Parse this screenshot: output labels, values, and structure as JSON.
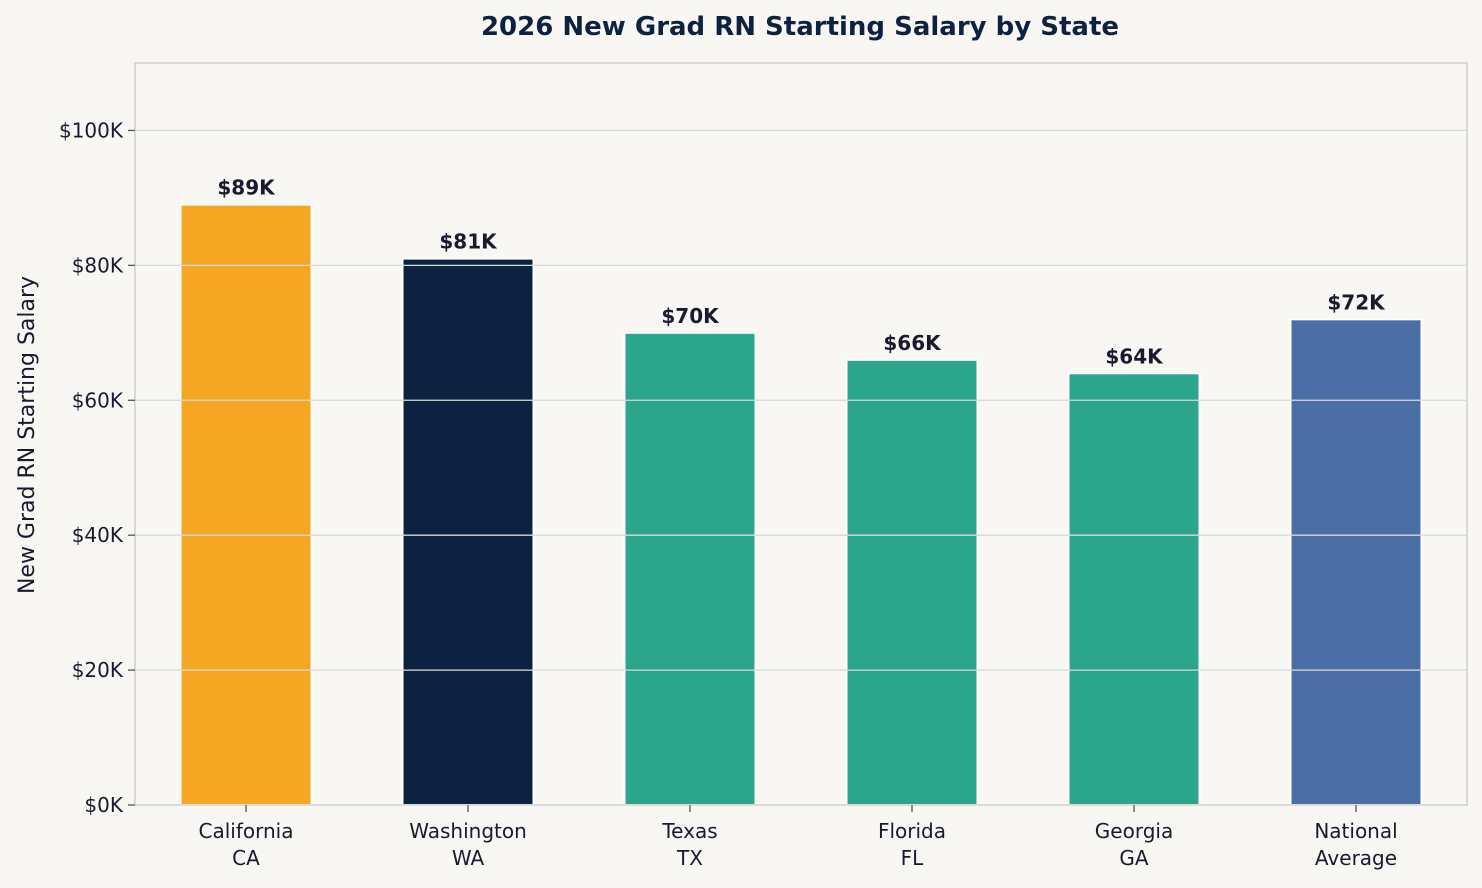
{
  "chart_data": {
    "type": "bar",
    "title": "2026 New Grad RN Starting Salary by State",
    "xlabel": "",
    "ylabel": "New Grad RN Starting Salary",
    "categories": [
      [
        "California",
        "CA"
      ],
      [
        "Washington",
        "WA"
      ],
      [
        "Texas",
        "TX"
      ],
      [
        "Florida",
        "FL"
      ],
      [
        "Georgia",
        "GA"
      ],
      [
        "National",
        "Average"
      ]
    ],
    "values": [
      89000,
      81000,
      70000,
      66000,
      64000,
      72000
    ],
    "data_labels": [
      "$89K",
      "$81K",
      "$70K",
      "$66K",
      "$64K",
      "$72K"
    ],
    "colors": [
      "#f5a623",
      "#0b2240",
      "#2ca58d",
      "#2ca58d",
      "#2ca58d",
      "#4a6ea5"
    ],
    "ylim": [
      0,
      110000
    ],
    "yticks": [
      0,
      20000,
      40000,
      60000,
      80000,
      100000
    ],
    "ytick_labels": [
      "$0K",
      "$20K",
      "$40K",
      "$60K",
      "$80K",
      "$100K"
    ],
    "grid": true
  }
}
